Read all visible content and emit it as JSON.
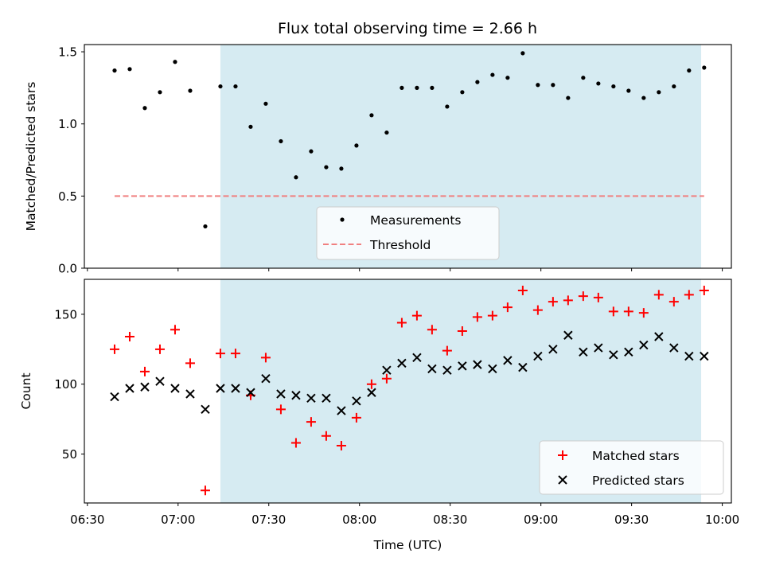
{
  "title": "Flux total observing time = 2.66 h",
  "colors": {
    "shade": "#add8e6",
    "measurement": "#000000",
    "threshold": "#f08080",
    "matched": "#ff0000",
    "predicted": "#000000"
  },
  "chart_data": [
    {
      "type": "scatter",
      "title": "Flux total observing time = 2.66 h",
      "xlabel": "",
      "ylabel": "Matched/Predicted stars",
      "xlim": [
        "06:29",
        "10:03"
      ],
      "ylim": [
        0,
        1.55
      ],
      "yticks": [
        0.0,
        0.5,
        1.0,
        1.5
      ],
      "ytick_labels": [
        "0.0",
        "0.5",
        "1.0",
        "1.5"
      ],
      "grid": false,
      "legend_position": "lower-center",
      "shaded_interval": [
        "07:14",
        "09:53"
      ],
      "x": [
        "06:39",
        "06:44",
        "06:49",
        "06:54",
        "06:59",
        "07:04",
        "07:09",
        "07:14",
        "07:19",
        "07:24",
        "07:29",
        "07:34",
        "07:39",
        "07:44",
        "07:49",
        "07:54",
        "07:59",
        "08:04",
        "08:09",
        "08:14",
        "08:19",
        "08:24",
        "08:29",
        "08:34",
        "08:39",
        "08:44",
        "08:49",
        "08:54",
        "08:59",
        "09:04",
        "09:09",
        "09:14",
        "09:19",
        "09:24",
        "09:29",
        "09:34",
        "09:39",
        "09:44",
        "09:49",
        "09:54"
      ],
      "series": [
        {
          "name": "Measurements",
          "values": [
            1.37,
            1.38,
            1.11,
            1.22,
            1.43,
            1.23,
            0.29,
            1.26,
            1.26,
            0.98,
            1.14,
            0.88,
            0.63,
            0.81,
            0.7,
            0.69,
            0.85,
            1.06,
            0.94,
            1.25,
            1.25,
            1.25,
            1.12,
            1.22,
            1.29,
            1.34,
            1.32,
            1.49,
            1.27,
            1.27,
            1.18,
            1.32,
            1.28,
            1.26,
            1.23,
            1.18,
            1.22,
            1.26,
            1.37,
            1.39
          ]
        },
        {
          "name": "Threshold",
          "x_range": [
            "06:39",
            "09:54"
          ],
          "values": [
            0.5
          ]
        }
      ]
    },
    {
      "type": "scatter",
      "title": "",
      "xlabel": "Time (UTC)",
      "ylabel": "Count",
      "xlim": [
        "06:29",
        "10:03"
      ],
      "ylim": [
        15,
        175
      ],
      "yticks": [
        50,
        100,
        150
      ],
      "ytick_labels": [
        "50",
        "100",
        "150"
      ],
      "xticks": [
        "06:30",
        "07:00",
        "07:30",
        "08:00",
        "08:30",
        "09:00",
        "09:30",
        "10:00"
      ],
      "xtick_labels": [
        "06:30",
        "07:00",
        "07:30",
        "08:00",
        "08:30",
        "09:00",
        "09:30",
        "10:00"
      ],
      "grid": false,
      "legend_position": "lower-right",
      "shaded_interval": [
        "07:14",
        "09:53"
      ],
      "x": [
        "06:39",
        "06:44",
        "06:49",
        "06:54",
        "06:59",
        "07:04",
        "07:09",
        "07:14",
        "07:19",
        "07:24",
        "07:29",
        "07:34",
        "07:39",
        "07:44",
        "07:49",
        "07:54",
        "07:59",
        "08:04",
        "08:09",
        "08:14",
        "08:19",
        "08:24",
        "08:29",
        "08:34",
        "08:39",
        "08:44",
        "08:49",
        "08:54",
        "08:59",
        "09:04",
        "09:09",
        "09:14",
        "09:19",
        "09:24",
        "09:29",
        "09:34",
        "09:39",
        "09:44",
        "09:49",
        "09:54"
      ],
      "series": [
        {
          "name": "Matched stars",
          "values": [
            125,
            134,
            109,
            125,
            139,
            115,
            24,
            122,
            122,
            92,
            119,
            82,
            58,
            73,
            63,
            56,
            76,
            100,
            104,
            144,
            149,
            139,
            124,
            138,
            148,
            149,
            155,
            167,
            153,
            159,
            160,
            163,
            162,
            152,
            152,
            151,
            164,
            159,
            164,
            167
          ]
        },
        {
          "name": "Predicted stars",
          "values": [
            91,
            97,
            98,
            102,
            97,
            93,
            82,
            97,
            97,
            94,
            104,
            93,
            92,
            90,
            90,
            81,
            88,
            94,
            110,
            115,
            119,
            111,
            110,
            113,
            114,
            111,
            117,
            112,
            120,
            125,
            135,
            123,
            126,
            121,
            123,
            128,
            134,
            126,
            120,
            120
          ]
        }
      ]
    }
  ]
}
